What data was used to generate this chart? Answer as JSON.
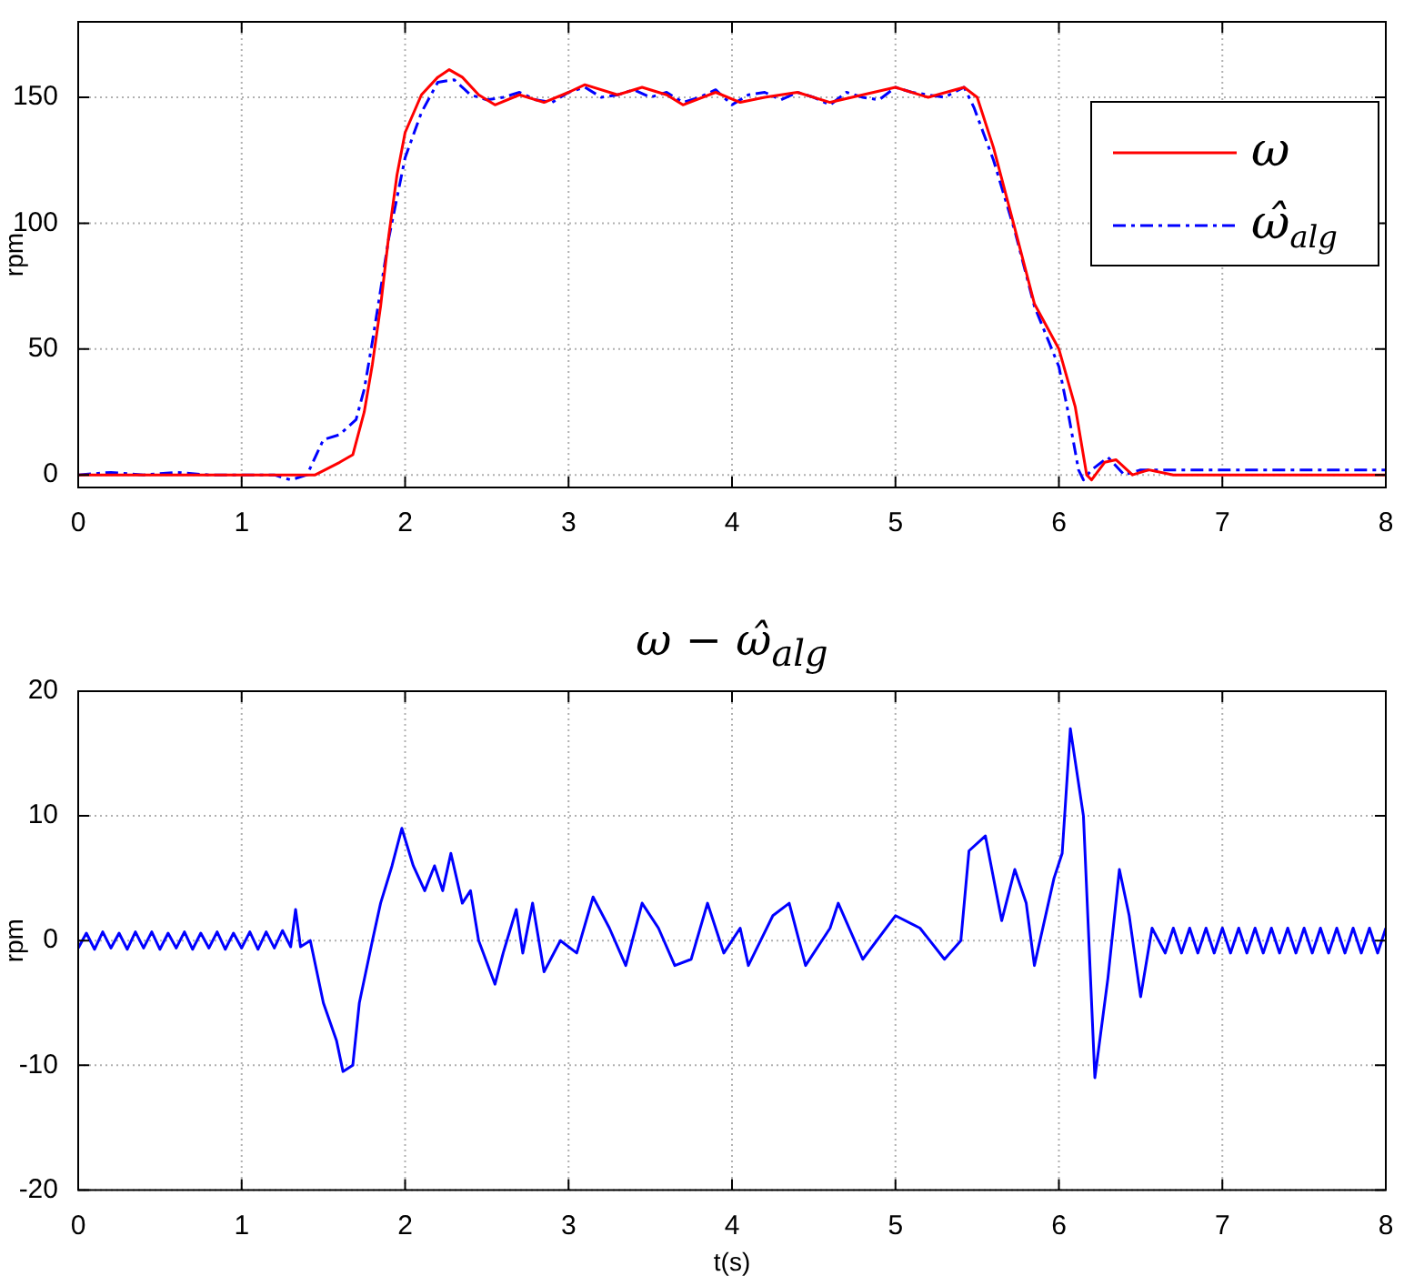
{
  "chart_data": [
    {
      "type": "line",
      "ylabel": "rpm",
      "xlim": [
        0,
        8
      ],
      "xticks": [
        0,
        1,
        2,
        3,
        4,
        5,
        6,
        7,
        8
      ],
      "ylim": [
        -5,
        180
      ],
      "yticks": [
        0,
        50,
        100,
        150
      ],
      "grid": true,
      "legend": "top right",
      "series": [
        {
          "name": "ω",
          "color": "#ff0000",
          "line_style": "solid",
          "x": [
            0,
            1.45,
            1.6,
            1.68,
            1.75,
            1.8,
            1.85,
            1.9,
            1.95,
            2.0,
            2.1,
            2.2,
            2.27,
            2.35,
            2.45,
            2.55,
            2.7,
            2.85,
            3.0,
            3.1,
            3.3,
            3.45,
            3.6,
            3.7,
            3.9,
            4.05,
            4.2,
            4.4,
            4.6,
            4.8,
            5.0,
            5.2,
            5.42,
            5.5,
            5.6,
            5.73,
            5.85,
            6.0,
            6.1,
            6.17,
            6.2,
            6.28,
            6.35,
            6.45,
            6.55,
            6.7,
            8
          ],
          "values": [
            0,
            0,
            5,
            8,
            25,
            44,
            67,
            95,
            119,
            136,
            151,
            158,
            161,
            158,
            151,
            147,
            151,
            148,
            152,
            155,
            151,
            154,
            151,
            147,
            152,
            148,
            150,
            152,
            148,
            151,
            154,
            150,
            154,
            150,
            130,
            98,
            68,
            50,
            27,
            0,
            -2,
            5,
            6,
            0,
            2,
            0,
            0
          ]
        },
        {
          "name": "ω̂$_{alg}$",
          "color": "#0000ff",
          "line_style": "dashdot",
          "x": [
            0,
            0.2,
            0.4,
            0.6,
            0.8,
            1.0,
            1.2,
            1.3,
            1.4,
            1.5,
            1.6,
            1.7,
            1.75,
            1.8,
            1.9,
            2.0,
            2.1,
            2.2,
            2.3,
            2.4,
            2.5,
            2.6,
            2.7,
            2.8,
            2.9,
            3.0,
            3.1,
            3.2,
            3.3,
            3.4,
            3.5,
            3.6,
            3.7,
            3.8,
            3.9,
            4.0,
            4.1,
            4.2,
            4.3,
            4.4,
            4.5,
            4.6,
            4.7,
            4.8,
            4.9,
            5.0,
            5.1,
            5.2,
            5.3,
            5.42,
            5.48,
            5.6,
            5.73,
            5.85,
            6.0,
            6.05,
            6.12,
            6.15,
            6.2,
            6.3,
            6.4,
            6.5,
            6.6,
            7.0,
            7.5,
            8
          ],
          "values": [
            0,
            1,
            0,
            1,
            0,
            0,
            0,
            -2,
            0,
            14,
            16,
            22,
            34,
            53,
            94,
            126,
            144,
            156,
            157,
            151,
            149,
            150,
            152,
            149,
            148,
            152,
            154,
            150,
            151,
            153,
            150,
            152,
            148,
            150,
            153,
            147,
            151,
            152,
            149,
            152,
            150,
            147,
            152,
            150,
            149,
            154,
            152,
            151,
            150,
            154,
            146,
            125,
            97,
            67,
            43,
            27,
            2,
            -2,
            2,
            7,
            0,
            2,
            2,
            2,
            2,
            2
          ]
        }
      ]
    },
    {
      "type": "line",
      "title": "ω − ω̂$_{alg}$",
      "xlabel": "t(s)",
      "ylabel": "rpm",
      "xlim": [
        0,
        8
      ],
      "xticks": [
        0,
        1,
        2,
        3,
        4,
        5,
        6,
        7,
        8
      ],
      "ylim": [
        -20,
        20
      ],
      "yticks": [
        -20,
        -10,
        0,
        10,
        20
      ],
      "grid": true,
      "series": [
        {
          "color": "#0000ff",
          "line_style": "solid",
          "x": [
            0,
            0.05,
            0.1,
            0.15,
            0.2,
            0.25,
            0.3,
            0.35,
            0.4,
            0.45,
            0.5,
            0.55,
            0.6,
            0.65,
            0.7,
            0.75,
            0.8,
            0.85,
            0.9,
            0.95,
            1.0,
            1.05,
            1.1,
            1.15,
            1.2,
            1.25,
            1.3,
            1.33,
            1.36,
            1.42,
            1.5,
            1.58,
            1.62,
            1.68,
            1.72,
            1.8,
            1.85,
            1.92,
            1.98,
            2.05,
            2.12,
            2.18,
            2.23,
            2.28,
            2.35,
            2.4,
            2.45,
            2.55,
            2.6,
            2.68,
            2.72,
            2.78,
            2.85,
            2.95,
            3.05,
            3.15,
            3.25,
            3.35,
            3.45,
            3.55,
            3.65,
            3.75,
            3.85,
            3.95,
            4.05,
            4.1,
            4.25,
            4.35,
            4.45,
            4.6,
            4.65,
            4.8,
            5.0,
            5.15,
            5.3,
            5.4,
            5.45,
            5.55,
            5.65,
            5.73,
            5.8,
            5.85,
            5.97,
            6.02,
            6.07,
            6.15,
            6.22,
            6.3,
            6.37,
            6.43,
            6.5,
            6.57,
            6.65,
            6.7,
            6.75,
            6.8,
            6.85,
            6.9,
            6.95,
            7.0,
            7.05,
            7.1,
            7.15,
            7.2,
            7.25,
            7.3,
            7.35,
            7.4,
            7.45,
            7.5,
            7.55,
            7.6,
            7.65,
            7.7,
            7.75,
            7.8,
            7.85,
            7.9,
            7.95,
            8
          ],
          "values": [
            -0.6,
            0.6,
            -0.7,
            0.7,
            -0.6,
            0.6,
            -0.7,
            0.7,
            -0.6,
            0.7,
            -0.7,
            0.6,
            -0.6,
            0.7,
            -0.7,
            0.6,
            -0.6,
            0.7,
            -0.7,
            0.6,
            -0.6,
            0.7,
            -0.7,
            0.7,
            -0.6,
            0.8,
            -0.5,
            2.5,
            -0.5,
            0,
            -5,
            -8,
            -10.5,
            -10,
            -5,
            0,
            3,
            6,
            9,
            6,
            4,
            6,
            4,
            7,
            3,
            4,
            0,
            -3.5,
            -1,
            2.5,
            -1,
            3,
            -2.5,
            0,
            -1,
            3.5,
            1,
            -2,
            3,
            1,
            -2,
            -1.5,
            3,
            -1,
            1,
            -2,
            2,
            3,
            -2,
            1,
            3,
            -1.5,
            2,
            1,
            -1.5,
            0,
            7.2,
            8.4,
            1.6,
            5.7,
            3,
            -2,
            5,
            7,
            17,
            10,
            -11,
            -3,
            5.7,
            2,
            -4.5,
            1,
            -1,
            1,
            -1,
            1,
            -1,
            1,
            -1,
            1,
            -1,
            1,
            -1,
            1,
            -1,
            1,
            -1,
            1,
            -1,
            1,
            -1,
            1,
            -1,
            1,
            -1,
            1,
            -1,
            1,
            -1,
            1
          ]
        }
      ]
    }
  ]
}
